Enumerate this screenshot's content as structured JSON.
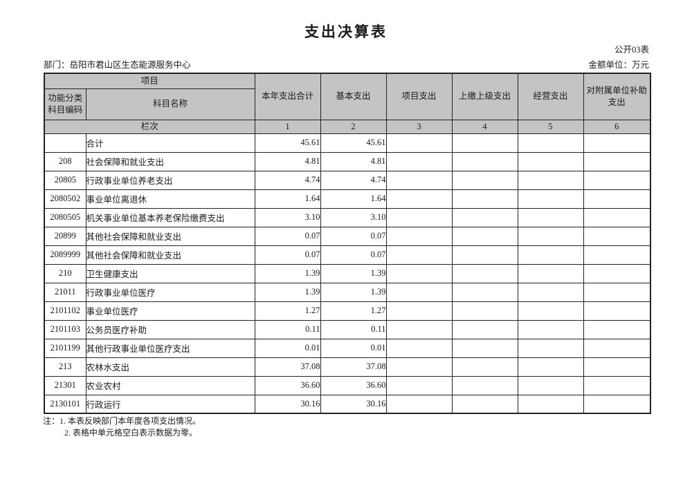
{
  "page": {
    "title": "支出决算表",
    "table_code": "公开03表",
    "department_label": "部门：岳阳市君山区生态能源服务中心",
    "unit_label": "金额单位：万元",
    "notes": [
      "注：1. 本表反映部门本年度各项支出情况。",
      "2. 表格中单元格空白表示数据为零。"
    ]
  },
  "table": {
    "header": {
      "project": "项目",
      "code": "功能分类科目编码",
      "name": "科目名称",
      "columns": [
        "本年支出合计",
        "基本支出",
        "项目支出",
        "上缴上级支出",
        "经营支出",
        "对附属单位补助支出"
      ],
      "lanci_label": "栏次",
      "lanci_numbers": [
        "1",
        "2",
        "3",
        "4",
        "5",
        "6"
      ]
    },
    "rows": [
      {
        "code": "",
        "name": "合计",
        "values": [
          "45.61",
          "45.61",
          "",
          "",
          "",
          ""
        ]
      },
      {
        "code": "208",
        "name": "社会保障和就业支出",
        "values": [
          "4.81",
          "4.81",
          "",
          "",
          "",
          ""
        ]
      },
      {
        "code": "20805",
        "name": "行政事业单位养老支出",
        "values": [
          "4.74",
          "4.74",
          "",
          "",
          "",
          ""
        ]
      },
      {
        "code": "2080502",
        "name": "事业单位离退休",
        "values": [
          "1.64",
          "1.64",
          "",
          "",
          "",
          ""
        ]
      },
      {
        "code": "2080505",
        "name": "机关事业单位基本养老保险缴费支出",
        "values": [
          "3.10",
          "3.10",
          "",
          "",
          "",
          ""
        ]
      },
      {
        "code": "20899",
        "name": "其他社会保障和就业支出",
        "values": [
          "0.07",
          "0.07",
          "",
          "",
          "",
          ""
        ]
      },
      {
        "code": "2089999",
        "name": "其他社会保障和就业支出",
        "values": [
          "0.07",
          "0.07",
          "",
          "",
          "",
          ""
        ]
      },
      {
        "code": "210",
        "name": "卫生健康支出",
        "values": [
          "1.39",
          "1.39",
          "",
          "",
          "",
          ""
        ]
      },
      {
        "code": "21011",
        "name": "行政事业单位医疗",
        "values": [
          "1.39",
          "1.39",
          "",
          "",
          "",
          ""
        ]
      },
      {
        "code": "2101102",
        "name": "事业单位医疗",
        "values": [
          "1.27",
          "1.27",
          "",
          "",
          "",
          ""
        ]
      },
      {
        "code": "2101103",
        "name": "公务员医疗补助",
        "values": [
          "0.11",
          "0.11",
          "",
          "",
          "",
          ""
        ]
      },
      {
        "code": "2101199",
        "name": "其他行政事业单位医疗支出",
        "values": [
          "0.01",
          "0.01",
          "",
          "",
          "",
          ""
        ]
      },
      {
        "code": "213",
        "name": "农林水支出",
        "values": [
          "37.08",
          "37.08",
          "",
          "",
          "",
          ""
        ]
      },
      {
        "code": "21301",
        "name": "农业农村",
        "values": [
          "36.60",
          "36.60",
          "",
          "",
          "",
          ""
        ]
      },
      {
        "code": "2130101",
        "name": "行政运行",
        "values": [
          "30.16",
          "30.16",
          "",
          "",
          "",
          ""
        ]
      }
    ]
  },
  "colors": {
    "header_bg": "#c4c4c4",
    "border": "#222222"
  }
}
